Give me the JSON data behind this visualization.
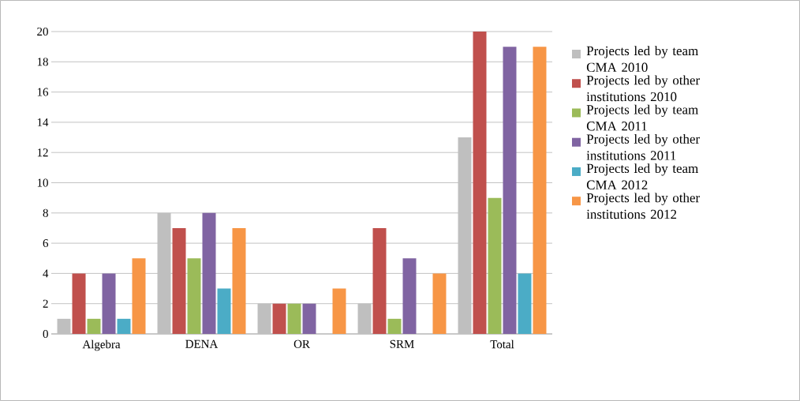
{
  "chart_data": {
    "type": "bar",
    "categories": [
      "Algebra",
      "DENA",
      "OR",
      "SRM",
      "Total"
    ],
    "series": [
      {
        "name": "Projects led by team CMA 2010",
        "color": "#bfbfbf",
        "values": [
          1,
          8,
          2,
          2,
          13
        ]
      },
      {
        "name": "Projects led by other institutions 2010",
        "color": "#c0504d",
        "values": [
          4,
          7,
          2,
          7,
          20
        ]
      },
      {
        "name": "Projects led by team CMA 2011",
        "color": "#9bbb59",
        "values": [
          1,
          5,
          2,
          1,
          9
        ]
      },
      {
        "name": "Projects led by other institutions 2011",
        "color": "#8064a2",
        "values": [
          4,
          8,
          2,
          5,
          19
        ]
      },
      {
        "name": "Projects led by team CMA 2012",
        "color": "#4bacc6",
        "values": [
          1,
          3,
          0,
          0,
          4
        ]
      },
      {
        "name": "Projects led by other institutions 2012",
        "color": "#f79646",
        "values": [
          5,
          7,
          3,
          4,
          19
        ]
      }
    ],
    "ylim": [
      0,
      20
    ],
    "yticks": [
      0,
      2,
      4,
      6,
      8,
      10,
      12,
      14,
      16,
      18,
      20
    ],
    "grid": "y",
    "legend": "right"
  }
}
